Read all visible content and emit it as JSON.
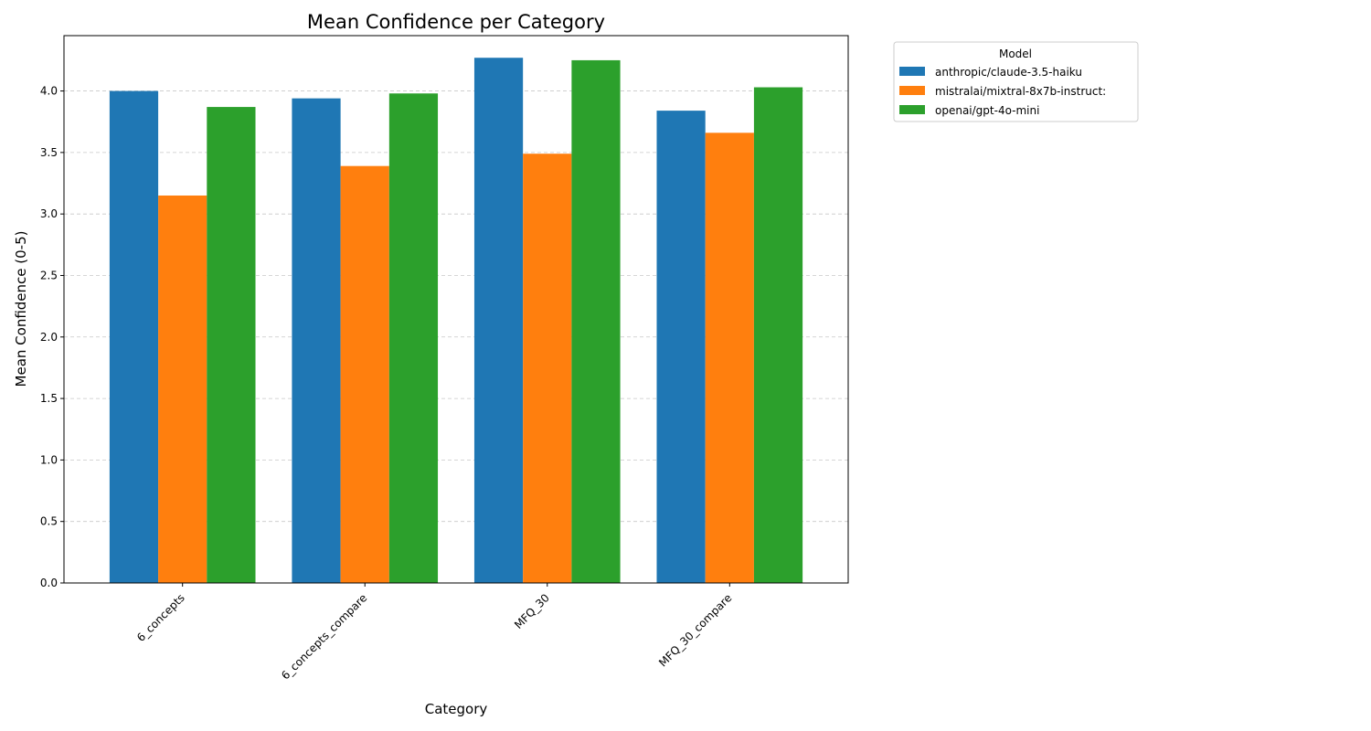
{
  "chart_data": {
    "type": "bar",
    "title": "Mean Confidence per Category",
    "xlabel": "Category",
    "ylabel": "Mean Confidence (0-5)",
    "categories": [
      "6_concepts",
      "6_concepts_compare",
      "MFQ_30",
      "MFQ_30_compare"
    ],
    "series": [
      {
        "name": "anthropic/claude-3.5-haiku",
        "color": "#1f77b4",
        "values": [
          4.0,
          3.94,
          4.27,
          3.84
        ]
      },
      {
        "name": "mistralai/mixtral-8x7b-instruct:",
        "color": "#ff7f0e",
        "values": [
          3.15,
          3.39,
          3.49,
          3.66
        ]
      },
      {
        "name": "openai/gpt-4o-mini",
        "color": "#2ca02c",
        "values": [
          3.87,
          3.98,
          4.25,
          4.03
        ]
      }
    ],
    "ylim": [
      0,
      4.45
    ],
    "yticks": [
      "0.0",
      "0.5",
      "1.0",
      "1.5",
      "2.0",
      "2.5",
      "3.0",
      "3.5",
      "4.0"
    ],
    "grid": "y-dashed",
    "legend": {
      "title": "Model",
      "placement": "outside-top-right"
    }
  }
}
